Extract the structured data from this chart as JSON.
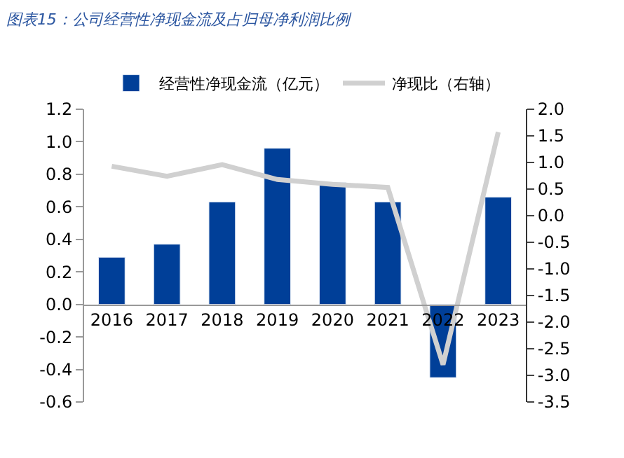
{
  "chart_data": {
    "type": "bar",
    "title": "图表15：公司经营性净现金流及占归母净利润比例",
    "categories": [
      "2016",
      "2017",
      "2018",
      "2019",
      "2020",
      "2021",
      "2022",
      "2023"
    ],
    "series": [
      {
        "name": "经营性净现金流（亿元）",
        "color": "#003f98",
        "values": [
          0.29,
          0.37,
          0.63,
          0.96,
          0.75,
          0.63,
          -0.45,
          0.66
        ]
      },
      {
        "name": "净现比（右轴）",
        "color": "#d0d0d0",
        "type": "line",
        "axis": "y2",
        "values": [
          0.93,
          0.74,
          0.96,
          0.68,
          0.59,
          0.53,
          -2.8,
          1.57
        ]
      }
    ],
    "ylim": [
      -0.6,
      1.2
    ],
    "yticks": [
      {
        "value": -0.6,
        "label": "-0.6"
      },
      {
        "value": -0.4,
        "label": "-0.4"
      },
      {
        "value": -0.2,
        "label": "-0.2"
      },
      {
        "value": 0,
        "label": "0.0"
      },
      {
        "value": 0.2,
        "label": "0.2"
      },
      {
        "value": 0.4,
        "label": "0.4"
      },
      {
        "value": 0.6,
        "label": "0.6"
      },
      {
        "value": 0.8,
        "label": "0.8"
      },
      {
        "value": 1.0,
        "label": "1.0"
      },
      {
        "value": 1.2,
        "label": "1.2"
      }
    ],
    "y2lim": [
      -3.5,
      2.0
    ],
    "y2ticks": [
      {
        "value": -3.5,
        "label": "-3.5"
      },
      {
        "value": -3.0,
        "label": "-3.0"
      },
      {
        "value": -2.5,
        "label": "-2.5"
      },
      {
        "value": -2.0,
        "label": "-2.0"
      },
      {
        "value": -1.5,
        "label": "-1.5"
      },
      {
        "value": -1.0,
        "label": "-1.0"
      },
      {
        "value": -0.5,
        "label": "-0.5"
      },
      {
        "value": 0,
        "label": "0.0"
      },
      {
        "value": 0.5,
        "label": "0.5"
      },
      {
        "value": 1.0,
        "label": "1.0"
      },
      {
        "value": 1.5,
        "label": "1.5"
      },
      {
        "value": 2.0,
        "label": "2.0"
      }
    ],
    "legend": "top",
    "marker": "none",
    "line_style": "solid"
  }
}
